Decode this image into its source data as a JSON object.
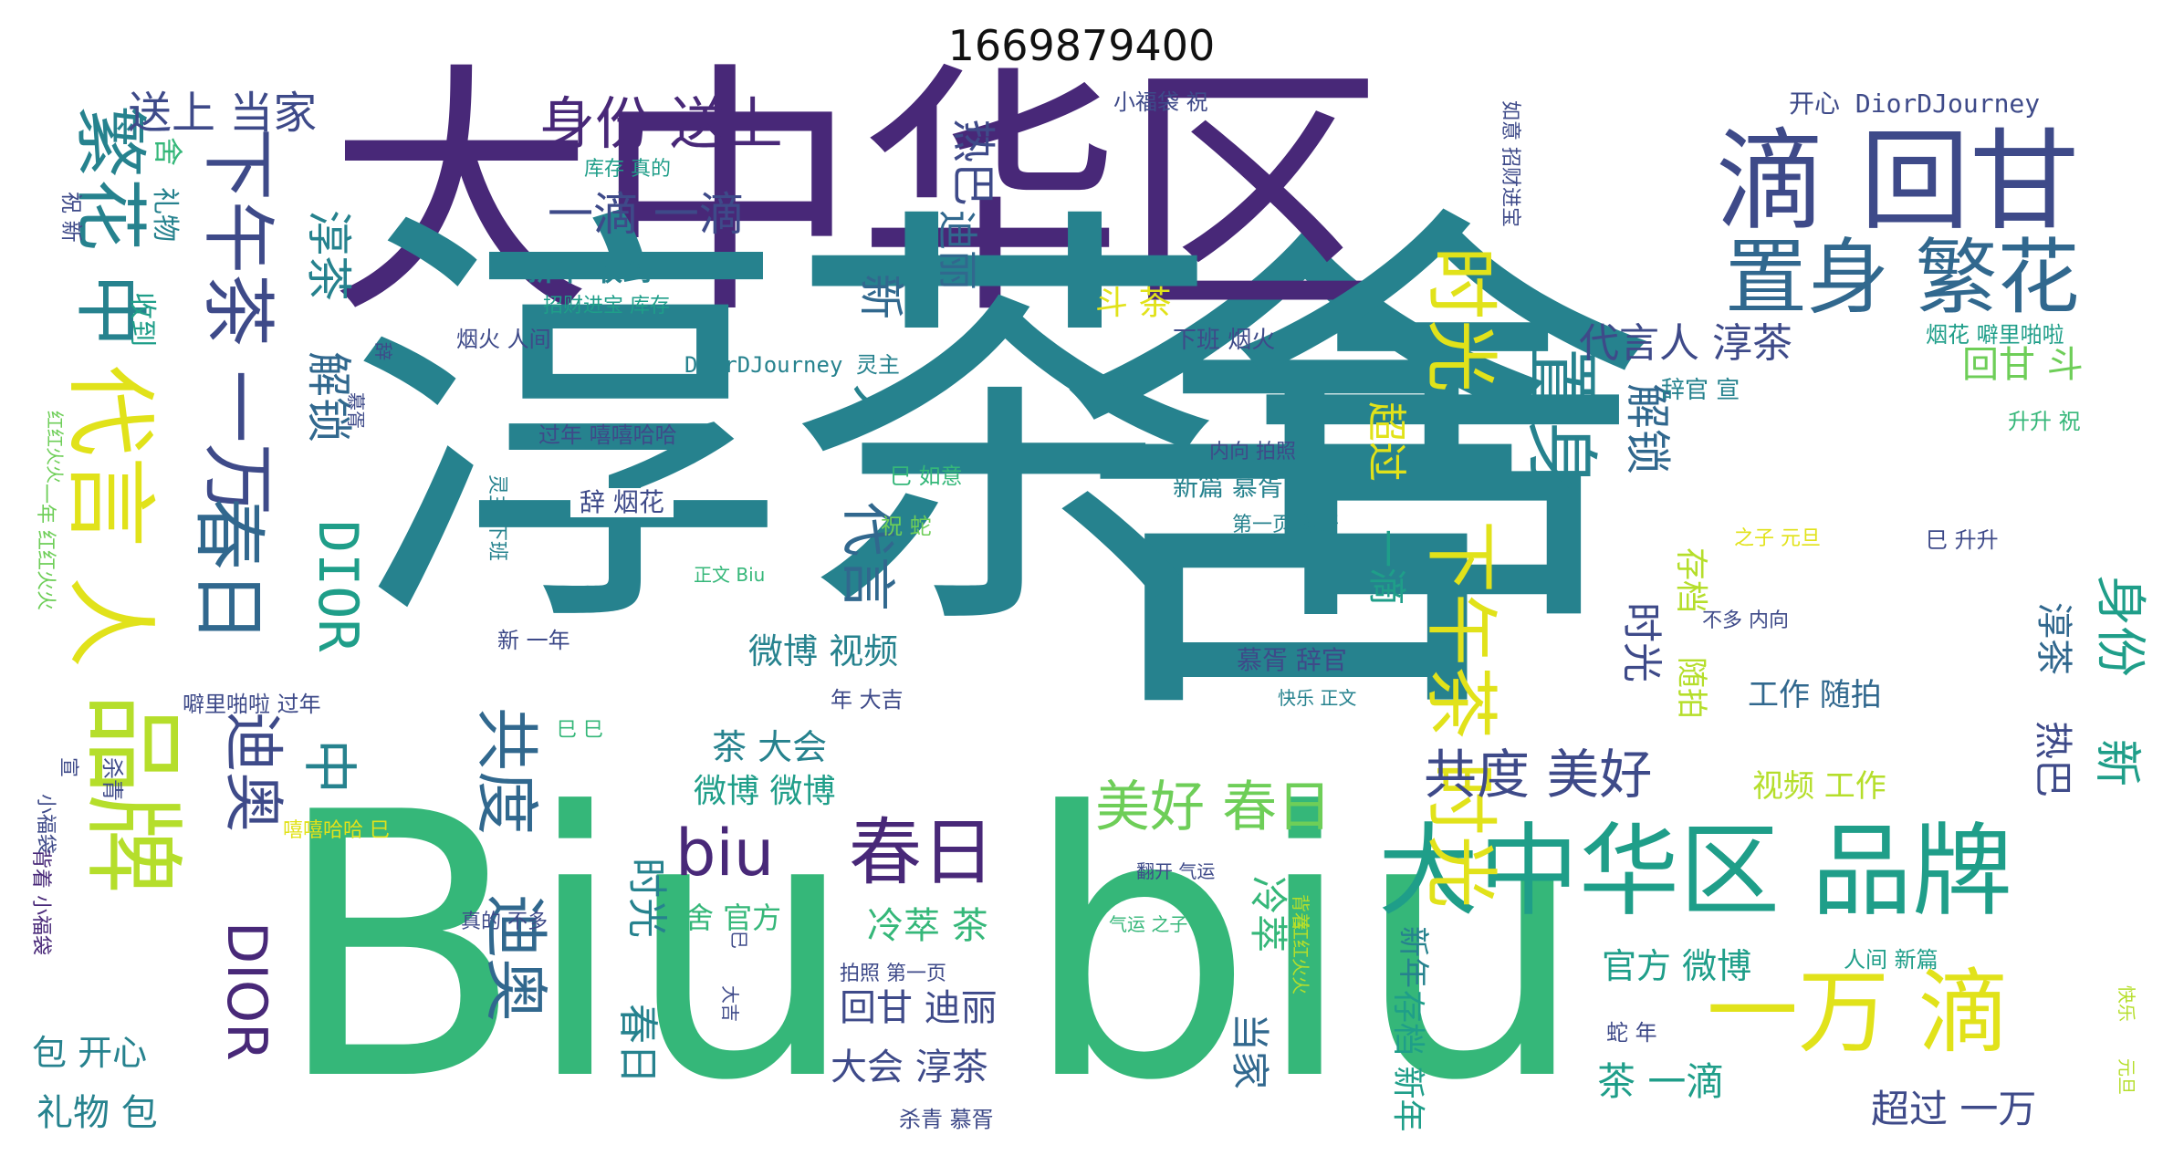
{
  "title": "1669879400",
  "palette": {
    "dark_purple": "#482878",
    "deep_purple": "#3e4a89",
    "blue": "#31688e",
    "teal": "#26828e",
    "green_teal": "#1f9e89",
    "green": "#35b779",
    "lime": "#6ece58",
    "yellow_green": "#b5de2b",
    "yellow": "#e1e21a"
  },
  "words": [
    {
      "id": "w1",
      "text": "舍"
    },
    {
      "id": "w2",
      "text": "大中华区"
    },
    {
      "id": "w3",
      "text": "淳茶舍"
    },
    {
      "id": "w4",
      "text": "Biu"
    },
    {
      "id": "w5",
      "text": "biu"
    },
    {
      "id": "w6",
      "text": "滴 回甘"
    },
    {
      "id": "w7",
      "text": "置身 繁花"
    },
    {
      "id": "w8",
      "text": "身份 送上"
    },
    {
      "id": "w9",
      "text": "一滴 一滴"
    },
    {
      "id": "w10",
      "text": "繁花 中"
    },
    {
      "id": "w11",
      "text": "代言 人"
    },
    {
      "id": "w12",
      "text": "品牌"
    },
    {
      "id": "w13",
      "text": "下午茶 一万"
    },
    {
      "id": "w14",
      "text": "春日"
    },
    {
      "id": "w15",
      "text": "迪奥"
    },
    {
      "id": "w16",
      "text": "DIOR"
    },
    {
      "id": "w17",
      "text": "共度"
    },
    {
      "id": "w18",
      "text": "迪奥"
    },
    {
      "id": "w19",
      "text": "大中华区 品牌"
    },
    {
      "id": "w20",
      "text": "一万 滴"
    },
    {
      "id": "w21",
      "text": "时光"
    },
    {
      "id": "w22",
      "text": "下午茶 时光"
    },
    {
      "id": "w23",
      "text": "置身"
    },
    {
      "id": "w24",
      "text": "biu"
    },
    {
      "id": "w25",
      "text": "春日"
    },
    {
      "id": "w26",
      "text": "美好 春日"
    },
    {
      "id": "w27",
      "text": "共度 美好"
    },
    {
      "id": "w28",
      "text": "送上 当家"
    },
    {
      "id": "w29",
      "text": "淳茶"
    },
    {
      "id": "w30",
      "text": "解锁"
    },
    {
      "id": "w31",
      "text": "DIOR"
    },
    {
      "id": "w32",
      "text": "中"
    },
    {
      "id": "w33",
      "text": "热巴"
    },
    {
      "id": "w34",
      "text": "迪丽"
    },
    {
      "id": "w35",
      "text": "新"
    },
    {
      "id": "w36",
      "text": "人"
    },
    {
      "id": "w37",
      "text": "代言"
    },
    {
      "id": "w38",
      "text": "新年 收到"
    },
    {
      "id": "w39",
      "text": "斗 茶"
    },
    {
      "id": "w40",
      "text": "超过"
    },
    {
      "id": "w41",
      "text": "一滴"
    },
    {
      "id": "w42",
      "text": "时光"
    },
    {
      "id": "w43",
      "text": "解锁"
    },
    {
      "id": "w44",
      "text": "代言人 淳茶"
    },
    {
      "id": "w45",
      "text": "回甘 斗"
    },
    {
      "id": "w46",
      "text": "存档"
    },
    {
      "id": "w47",
      "text": "随拍"
    },
    {
      "id": "w48",
      "text": "时光"
    },
    {
      "id": "w49",
      "text": "春日"
    },
    {
      "id": "w50",
      "text": "微博 视频"
    },
    {
      "id": "w51",
      "text": "茶 大会"
    },
    {
      "id": "w52",
      "text": "微博 微博"
    },
    {
      "id": "w53",
      "text": "冷萃 茶"
    },
    {
      "id": "w54",
      "text": "舍 官方"
    },
    {
      "id": "w55",
      "text": "冷萃"
    },
    {
      "id": "w56",
      "text": "当家"
    },
    {
      "id": "w57",
      "text": "回甘 迪丽"
    },
    {
      "id": "w58",
      "text": "大会 淳茶"
    },
    {
      "id": "w59",
      "text": "工作 随拍"
    },
    {
      "id": "w60",
      "text": "视频 工作"
    },
    {
      "id": "w61",
      "text": "官方 微博"
    },
    {
      "id": "w62",
      "text": "茶 一滴"
    },
    {
      "id": "w63",
      "text": "超过 一万"
    },
    {
      "id": "w64",
      "text": "淳茶"
    },
    {
      "id": "w65",
      "text": "身份"
    },
    {
      "id": "w66",
      "text": "热巴"
    },
    {
      "id": "w67",
      "text": "新"
    },
    {
      "id": "w68",
      "text": "舍"
    },
    {
      "id": "w69",
      "text": "礼物"
    },
    {
      "id": "w70",
      "text": "包 开心"
    },
    {
      "id": "w71",
      "text": "礼物 包"
    },
    {
      "id": "w72",
      "text": "收到"
    },
    {
      "id": "w73",
      "text": "祝 新"
    },
    {
      "id": "w74",
      "text": "小福袋 祝"
    },
    {
      "id": "w75",
      "text": "开心 DiorDJourney"
    },
    {
      "id": "w76",
      "text": "库存 真的"
    },
    {
      "id": "w77",
      "text": "招财进宝 库存"
    },
    {
      "id": "w78",
      "text": "如意 招财进宝"
    },
    {
      "id": "w79",
      "text": "烟火 人间"
    },
    {
      "id": "w80",
      "text": "DiorDJourney 灵主"
    },
    {
      "id": "w81",
      "text": "下班 烟火"
    },
    {
      "id": "w82",
      "text": "烟花 噼里啪啦"
    },
    {
      "id": "w83",
      "text": "辞官 宣"
    },
    {
      "id": "w84",
      "text": "升升 祝"
    },
    {
      "id": "w85",
      "text": "过年 嘻嘻哈哈"
    },
    {
      "id": "w86",
      "text": "内向 拍照"
    },
    {
      "id": "w87",
      "text": "辞 烟花"
    },
    {
      "id": "w88",
      "text": "巳 如意"
    },
    {
      "id": "w89",
      "text": "新篇 慕胥"
    },
    {
      "id": "w90",
      "text": "第一页 翻开"
    },
    {
      "id": "w91",
      "text": "祝 蛇"
    },
    {
      "id": "w92",
      "text": "之子 元旦"
    },
    {
      "id": "w93",
      "text": "巳 升升"
    },
    {
      "id": "w94",
      "text": "正文 Biu"
    },
    {
      "id": "w95",
      "text": "不多 内向"
    },
    {
      "id": "w96",
      "text": "新 一年"
    },
    {
      "id": "w97",
      "text": "慕胥 辞官"
    },
    {
      "id": "w98",
      "text": "快乐 正文"
    },
    {
      "id": "w99",
      "text": "年 大吉"
    },
    {
      "id": "w100",
      "text": "噼里啪啦 过年"
    },
    {
      "id": "w101",
      "text": "巳 巳"
    },
    {
      "id": "w102",
      "text": "杀青"
    },
    {
      "id": "w103",
      "text": "嘻嘻哈哈 巳"
    },
    {
      "id": "w104",
      "text": "翻开 气运"
    },
    {
      "id": "w105",
      "text": "气运 之子"
    },
    {
      "id": "w106",
      "text": "真的 不多"
    },
    {
      "id": "w107",
      "text": "拍照 第一页"
    },
    {
      "id": "w108",
      "text": "人间 新篇"
    },
    {
      "id": "w109",
      "text": "杀青 慕胥"
    },
    {
      "id": "w110",
      "text": "蛇 年"
    },
    {
      "id": "w111",
      "text": "辞"
    },
    {
      "id": "w112",
      "text": "慕胥"
    },
    {
      "id": "w113",
      "text": "红红火火"
    },
    {
      "id": "w114",
      "text": "一年 红红火火"
    },
    {
      "id": "w115",
      "text": "灵主 下班"
    },
    {
      "id": "w116",
      "text": "小福袋"
    },
    {
      "id": "w117",
      "text": "背着 小福袋"
    },
    {
      "id": "w118",
      "text": "宣"
    },
    {
      "id": "w119",
      "text": "红红火火"
    },
    {
      "id": "w120",
      "text": "背着"
    },
    {
      "id": "w121",
      "text": "大吉"
    },
    {
      "id": "w122",
      "text": "巳"
    },
    {
      "id": "w123",
      "text": "新年"
    },
    {
      "id": "w124",
      "text": "存档 新年"
    },
    {
      "id": "w125",
      "text": "快乐"
    },
    {
      "id": "w126",
      "text": "元旦"
    }
  ]
}
